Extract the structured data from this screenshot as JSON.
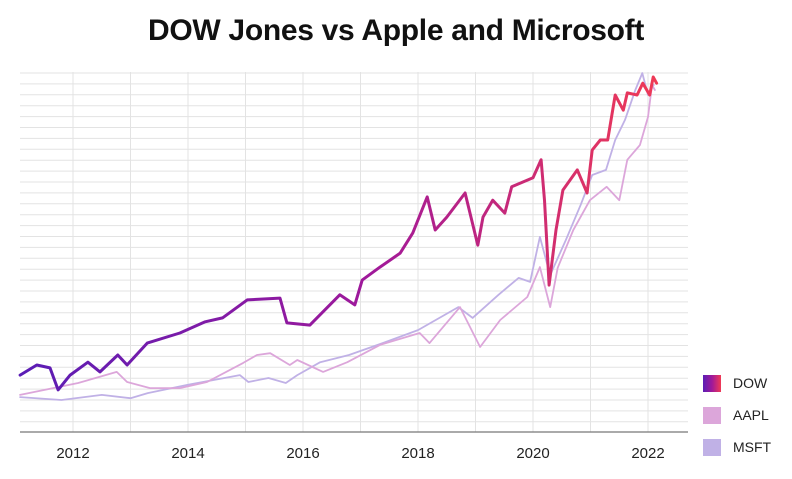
{
  "chart_data": {
    "type": "line",
    "title": "DOW Jones vs Apple and Microsoft",
    "xlabel": "",
    "ylabel": "",
    "xlim": [
      2011.08,
      2022.7
    ],
    "ylim": [
      0,
      100
    ],
    "x_ticks": [
      2012,
      2014,
      2016,
      2018,
      2020,
      2022
    ],
    "grid": true,
    "legend_position": "bottom-right",
    "series": [
      {
        "name": "DOW",
        "color": [
          "#5a1db5",
          "#a0199a",
          "#f03a55"
        ],
        "points": [
          [
            2011.08,
            15.8
          ],
          [
            2011.37,
            18.6
          ],
          [
            2011.6,
            17.8
          ],
          [
            2011.74,
            11.7
          ],
          [
            2011.95,
            15.8
          ],
          [
            2012.26,
            19.4
          ],
          [
            2012.47,
            16.7
          ],
          [
            2012.78,
            21.4
          ],
          [
            2012.94,
            18.6
          ],
          [
            2013.29,
            24.7
          ],
          [
            2013.86,
            27.5
          ],
          [
            2014.3,
            30.6
          ],
          [
            2014.6,
            31.7
          ],
          [
            2015.03,
            36.7
          ],
          [
            2015.6,
            37.2
          ],
          [
            2015.72,
            30.3
          ],
          [
            2016.12,
            29.7
          ],
          [
            2016.64,
            38.1
          ],
          [
            2016.9,
            35.3
          ],
          [
            2017.03,
            42.2
          ],
          [
            2017.34,
            45.8
          ],
          [
            2017.69,
            49.7
          ],
          [
            2017.91,
            55.3
          ],
          [
            2018.16,
            65.3
          ],
          [
            2018.3,
            56.1
          ],
          [
            2018.5,
            59.7
          ],
          [
            2018.82,
            66.4
          ],
          [
            2019.04,
            51.9
          ],
          [
            2019.13,
            59.7
          ],
          [
            2019.3,
            64.4
          ],
          [
            2019.51,
            60.8
          ],
          [
            2019.63,
            68.1
          ],
          [
            2020.0,
            70.6
          ],
          [
            2020.14,
            75.6
          ],
          [
            2020.2,
            64.4
          ],
          [
            2020.28,
            40.8
          ],
          [
            2020.4,
            56.1
          ],
          [
            2020.52,
            67.2
          ],
          [
            2020.77,
            72.8
          ],
          [
            2020.94,
            66.4
          ],
          [
            2021.03,
            78.3
          ],
          [
            2021.17,
            81.1
          ],
          [
            2021.3,
            81.1
          ],
          [
            2021.43,
            93.6
          ],
          [
            2021.57,
            89.4
          ],
          [
            2021.64,
            94.2
          ],
          [
            2021.81,
            93.6
          ],
          [
            2021.91,
            96.9
          ],
          [
            2022.03,
            93.6
          ],
          [
            2022.09,
            98.6
          ],
          [
            2022.15,
            96.9
          ]
        ]
      },
      {
        "name": "AAPL",
        "color": "#dca6da",
        "points": [
          [
            2011.08,
            10.3
          ],
          [
            2012.09,
            13.6
          ],
          [
            2012.76,
            16.7
          ],
          [
            2012.94,
            13.9
          ],
          [
            2013.34,
            12.2
          ],
          [
            2013.86,
            12.2
          ],
          [
            2014.33,
            13.9
          ],
          [
            2014.96,
            19.2
          ],
          [
            2015.2,
            21.4
          ],
          [
            2015.43,
            21.9
          ],
          [
            2015.77,
            18.6
          ],
          [
            2015.9,
            20.0
          ],
          [
            2016.35,
            16.7
          ],
          [
            2016.77,
            19.4
          ],
          [
            2017.34,
            24.2
          ],
          [
            2018.03,
            27.5
          ],
          [
            2018.2,
            24.7
          ],
          [
            2018.73,
            34.7
          ],
          [
            2019.08,
            23.6
          ],
          [
            2019.43,
            31.1
          ],
          [
            2019.9,
            37.5
          ],
          [
            2020.12,
            45.8
          ],
          [
            2020.3,
            34.7
          ],
          [
            2020.43,
            45.6
          ],
          [
            2020.7,
            56.1
          ],
          [
            2020.99,
            64.4
          ],
          [
            2021.28,
            68.1
          ],
          [
            2021.5,
            64.4
          ],
          [
            2021.64,
            75.6
          ],
          [
            2021.86,
            79.7
          ],
          [
            2022.0,
            87.5
          ],
          [
            2022.07,
            96.4
          ],
          [
            2022.12,
            95.0
          ]
        ]
      },
      {
        "name": "MSFT",
        "color": "#c0b1e6",
        "points": [
          [
            2011.08,
            9.7
          ],
          [
            2011.8,
            8.9
          ],
          [
            2012.5,
            10.3
          ],
          [
            2013.0,
            9.4
          ],
          [
            2013.3,
            10.8
          ],
          [
            2014.0,
            13.1
          ],
          [
            2014.9,
            15.8
          ],
          [
            2015.05,
            13.9
          ],
          [
            2015.4,
            15.0
          ],
          [
            2015.7,
            13.6
          ],
          [
            2015.9,
            15.8
          ],
          [
            2016.3,
            19.4
          ],
          [
            2016.8,
            21.4
          ],
          [
            2017.3,
            24.2
          ],
          [
            2018.0,
            28.3
          ],
          [
            2018.7,
            34.7
          ],
          [
            2018.95,
            31.7
          ],
          [
            2019.4,
            38.1
          ],
          [
            2019.75,
            42.8
          ],
          [
            2019.95,
            41.7
          ],
          [
            2020.12,
            54.2
          ],
          [
            2020.25,
            46.4
          ],
          [
            2020.3,
            43.6
          ],
          [
            2020.57,
            53.3
          ],
          [
            2020.83,
            63.1
          ],
          [
            2021.03,
            71.4
          ],
          [
            2021.27,
            72.8
          ],
          [
            2021.43,
            81.1
          ],
          [
            2021.6,
            86.7
          ],
          [
            2021.78,
            95.0
          ],
          [
            2021.9,
            99.7
          ],
          [
            2022.0,
            93.6
          ],
          [
            2022.1,
            96.4
          ]
        ]
      }
    ]
  }
}
